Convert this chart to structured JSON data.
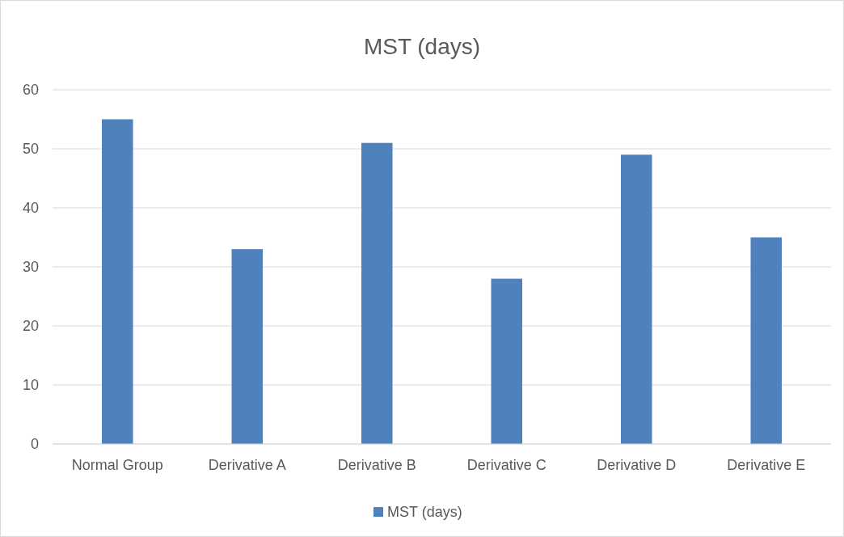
{
  "chart_data": {
    "type": "bar",
    "title": "MST (days)",
    "categories": [
      "Normal Group",
      "Derivative A",
      "Derivative B",
      "Derivative C",
      "Derivative D",
      "Derivative E"
    ],
    "series": [
      {
        "name": "MST (days)",
        "color": "#4f81bd",
        "values": [
          55,
          33,
          51,
          28,
          49,
          35
        ]
      }
    ],
    "ylim": [
      0,
      60
    ],
    "yticks": [
      0,
      10,
      20,
      30,
      40,
      50,
      60
    ],
    "grid": "y",
    "legend": "bottom"
  }
}
